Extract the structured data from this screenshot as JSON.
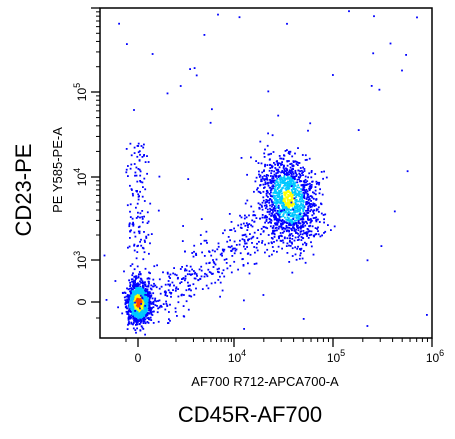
{
  "figure": {
    "outer_xlabel": "CD45R-AF700",
    "outer_ylabel": "CD23-PE"
  },
  "chart_data": {
    "type": "scatter",
    "title": "",
    "xlabel": "AF700 R712-APCA700-A",
    "ylabel": "PE Y585-PE-A",
    "scale": "biexponential",
    "xlim": [
      -1000,
      1000000
    ],
    "ylim": [
      -1000,
      10000000
    ],
    "x_tick_labels": [
      "0",
      "10^4",
      "10^5",
      "10^6"
    ],
    "y_tick_labels": [
      "0",
      "10^3",
      "10^4",
      "10^5"
    ],
    "populations": [
      {
        "name": "",
        "center": [
          0,
          0
        ],
        "count": 1400,
        "note_density": "high"
      },
      {
        "name": "",
        "center": [
          35000,
          5500
        ],
        "count": 1300,
        "note_density": "medium"
      }
    ],
    "colors": {
      "low": "#0000ff",
      "mid": "#00c8ff",
      "high": "#ffff00",
      "peak": "#ff4000"
    },
    "grid": false,
    "legend": "none"
  }
}
